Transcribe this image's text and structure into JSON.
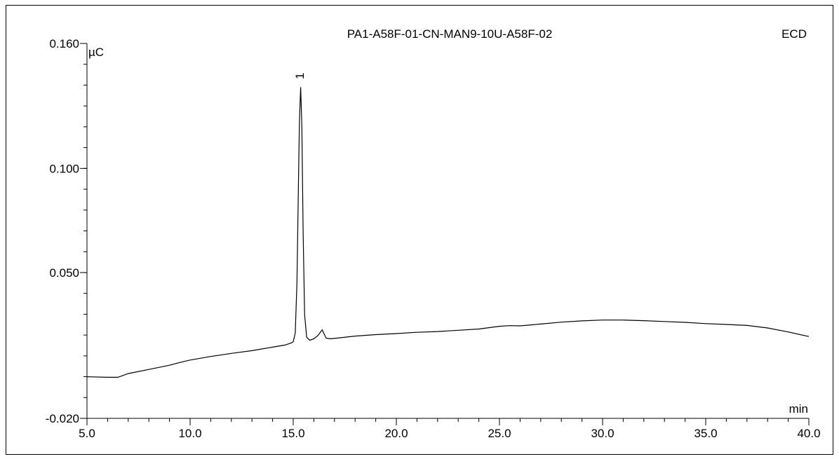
{
  "chart_data": {
    "type": "line",
    "title": "PA1-A58F-01-CN-MAN9-10U-A58F-02",
    "detector": "ECD",
    "ylabel": "µC",
    "xlabel": "min",
    "xlim": [
      5.0,
      40.0
    ],
    "ylim": [
      -0.02,
      0.16
    ],
    "y_ticks": [
      {
        "value": -0.02,
        "label": "-0.020"
      },
      {
        "value": 0.05,
        "label": "0.050"
      },
      {
        "value": 0.1,
        "label": "0.100"
      },
      {
        "value": 0.16,
        "label": "0.160"
      }
    ],
    "x_ticks": [
      {
        "value": 5.0,
        "label": "5.0"
      },
      {
        "value": 10.0,
        "label": "10.0"
      },
      {
        "value": 15.0,
        "label": "15.0"
      },
      {
        "value": 20.0,
        "label": "20.0"
      },
      {
        "value": 25.0,
        "label": "25.0"
      },
      {
        "value": 30.0,
        "label": "30.0"
      },
      {
        "value": 35.0,
        "label": "35.0"
      },
      {
        "value": 40.0,
        "label": "40.0"
      }
    ],
    "peaks": [
      {
        "label": "1",
        "x": 15.36,
        "y": 0.139
      }
    ],
    "series": [
      {
        "x": [
          5.0,
          6.0,
          6.5,
          7.0,
          8.0,
          9.0,
          9.5,
          10.0,
          11.0,
          12.0,
          13.0,
          14.0,
          14.6,
          14.9,
          15.0,
          15.1,
          15.18,
          15.24,
          15.3,
          15.36,
          15.42,
          15.48,
          15.55,
          15.65,
          15.8,
          16.0,
          16.2,
          16.4,
          16.6,
          16.8,
          17.0,
          18.0,
          19.0,
          20.0,
          21.0,
          22.0,
          23.0,
          24.0,
          25.0,
          25.5,
          26.0,
          27.0,
          28.0,
          29.0,
          30.0,
          31.0,
          32.0,
          33.0,
          34.0,
          35.0,
          36.0,
          37.0,
          38.0,
          39.0,
          40.0
        ],
        "y": [
          0.0,
          -0.0003,
          -0.0003,
          0.0015,
          0.0035,
          0.0055,
          0.0068,
          0.008,
          0.0097,
          0.0112,
          0.0125,
          0.0142,
          0.0152,
          0.0162,
          0.0168,
          0.021,
          0.045,
          0.085,
          0.122,
          0.139,
          0.12,
          0.07,
          0.03,
          0.019,
          0.0175,
          0.0182,
          0.0198,
          0.0225,
          0.0185,
          0.0182,
          0.0184,
          0.0195,
          0.0202,
          0.0207,
          0.0213,
          0.0217,
          0.0223,
          0.0229,
          0.0242,
          0.0245,
          0.0244,
          0.0253,
          0.0262,
          0.0268,
          0.0272,
          0.0272,
          0.0269,
          0.0265,
          0.0261,
          0.0255,
          0.0251,
          0.0246,
          0.0234,
          0.0215,
          0.0193
        ]
      }
    ],
    "grid": false
  }
}
